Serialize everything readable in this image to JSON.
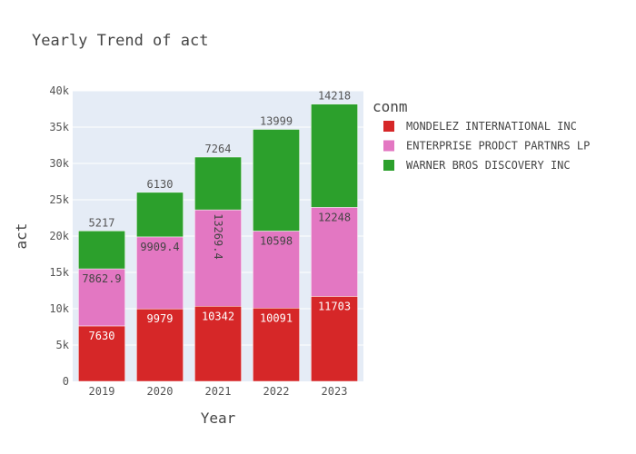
{
  "chart_data": {
    "type": "bar",
    "stacked": true,
    "title": "Yearly Trend of act",
    "xlabel": "Year",
    "ylabel": "act",
    "categories": [
      "2019",
      "2020",
      "2021",
      "2022",
      "2023"
    ],
    "ylim": [
      0,
      40000
    ],
    "yticks": [
      0,
      5000,
      10000,
      15000,
      20000,
      25000,
      30000,
      35000,
      40000
    ],
    "ytick_labels": [
      "0",
      "5k",
      "10k",
      "15k",
      "20k",
      "25k",
      "30k",
      "35k",
      "40k"
    ],
    "grid": true,
    "legend_title": "conm",
    "legend_position": "right",
    "series": [
      {
        "name": "MONDELEZ INTERNATIONAL INC",
        "color": "#d62728",
        "values": [
          7630,
          9979,
          10342,
          10091,
          11703
        ],
        "labels": [
          "7630",
          "9979",
          "10342",
          "10091",
          "11703"
        ]
      },
      {
        "name": "ENTERPRISE PRODCT PARTNRS LP",
        "color": "#e377c2",
        "values": [
          7862.9,
          9909.4,
          13269.4,
          10598,
          12248
        ],
        "labels": [
          "7862.9",
          "9909.4",
          "13269.4",
          "10598",
          "12248"
        ]
      },
      {
        "name": "WARNER BROS DISCOVERY INC",
        "color": "#2ca02c",
        "values": [
          5217,
          6130,
          7264,
          13999,
          14218
        ],
        "labels": [
          "5217",
          "6130",
          "7264",
          "13999",
          "14218"
        ]
      }
    ]
  }
}
